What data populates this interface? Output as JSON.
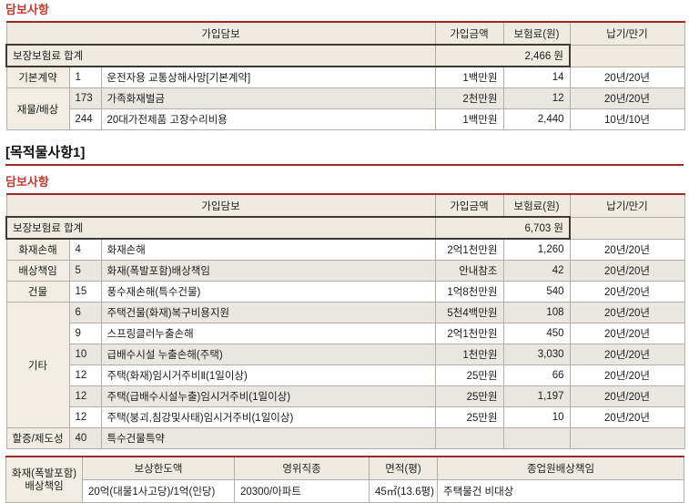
{
  "colors": {
    "title_red": "#c23a2b",
    "rule_red": "#9a2d22",
    "header_beige": "#efeae2",
    "group_beige": "#f1ece4",
    "stripe_gray": "#eae7e2",
    "grid_gray": "#b3aea5",
    "summary_box_border": "#3d3933"
  },
  "section1": {
    "title": "담보사항",
    "table": {
      "headers": [
        "가입담보",
        "가입금액",
        "보험료(원)",
        "납기/만기"
      ],
      "summary": {
        "label": "보장보험료 합계",
        "value": "2,466 원"
      },
      "rows": [
        {
          "group": "기본계약",
          "group_span": 1,
          "num": "1",
          "name": "운전자용 교통상해사망[기본계약]",
          "amount": "1백만원",
          "premium": "14",
          "term": "20년/20년"
        },
        {
          "group": "재물/배상",
          "group_span": 2,
          "num": "173",
          "name": "가족화재벌금",
          "amount": "2천만원",
          "premium": "12",
          "term": "20년/20년"
        },
        {
          "num": "244",
          "name": "20대가전제품 고장수리비용",
          "amount": "1백만원",
          "premium": "2,440",
          "term": "10년/10년"
        }
      ]
    }
  },
  "section2": {
    "heading": "[목적물사항1]",
    "title": "담보사항",
    "table": {
      "headers": [
        "가입담보",
        "가입금액",
        "보험료(원)",
        "납기/만기"
      ],
      "summary": {
        "label": "보장보험료 합계",
        "value": "6,703 원"
      },
      "rows": [
        {
          "group": "화재손해",
          "group_span": 1,
          "num": "4",
          "name": "화재손해",
          "amount": "2억1천만원",
          "premium": "1,260",
          "term": "20년/20년"
        },
        {
          "group": "배상책임",
          "group_span": 1,
          "num": "5",
          "name": "화재(폭발포함)배상책임",
          "amount": "안내참조",
          "premium": "42",
          "term": "20년/20년"
        },
        {
          "group": "건물",
          "group_span": 1,
          "num": "15",
          "name": "풍수재손해(특수건물)",
          "amount": "1억8천만원",
          "premium": "540",
          "term": "20년/20년"
        },
        {
          "group": "기타",
          "group_span": 6,
          "num": "6",
          "name": "주택건물(화재)복구비용지원",
          "amount": "5천4백만원",
          "premium": "108",
          "term": "20년/20년"
        },
        {
          "num": "9",
          "name": "스프링클러누출손해",
          "amount": "2억1천만원",
          "premium": "450",
          "term": "20년/20년"
        },
        {
          "num": "10",
          "name": "급배수시설 누출손해(주택)",
          "amount": "1천만원",
          "premium": "3,030",
          "term": "20년/20년"
        },
        {
          "num": "12",
          "name": "주택(화재)임시거주비Ⅱ(1일이상)",
          "amount": "25만원",
          "premium": "66",
          "term": "20년/20년"
        },
        {
          "num": "12",
          "name": "주택(급배수시설누출)임시거주비(1일이상)",
          "amount": "25만원",
          "premium": "1,197",
          "term": "20년/20년"
        },
        {
          "num": "12",
          "name": "주택(붕괴,침강및사태)임시거주비(1일이상)",
          "amount": "25만원",
          "premium": "10",
          "term": "20년/20년"
        },
        {
          "group": "할증/제도성",
          "group_span": 1,
          "num": "40",
          "name": "특수건물특약",
          "amount": "",
          "premium": "",
          "term": ""
        }
      ]
    }
  },
  "info_table": {
    "row_header_line1": "화재(폭발포함)",
    "row_header_line2": "배상책임",
    "headers": [
      "보상한도액",
      "영위직종",
      "면적(평)",
      "종업원배상책임"
    ],
    "values": [
      "20억(대물1사고당)/1억(인당)",
      "20300/아파트",
      "45㎡(13.6평)",
      "주택물건 비대상"
    ]
  }
}
